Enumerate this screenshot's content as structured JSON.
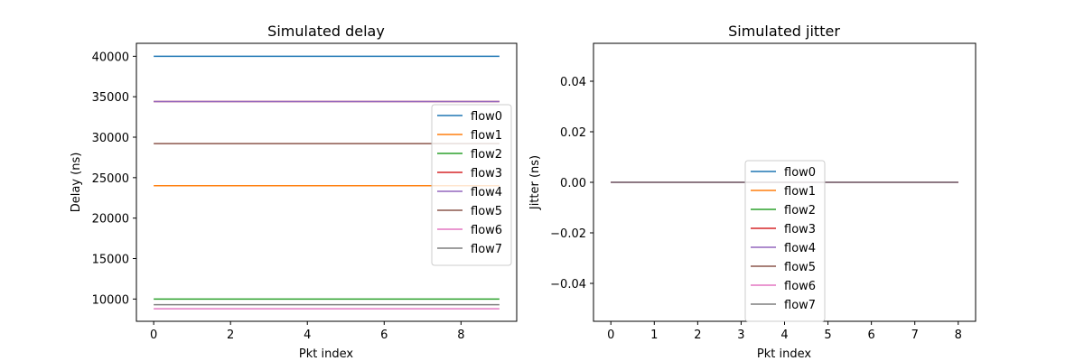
{
  "chart_data": [
    {
      "type": "line",
      "title": "Simulated delay",
      "xlabel": "Pkt index",
      "ylabel": "Delay (ns)",
      "xlim": [
        -0.45,
        9.45
      ],
      "ylim": [
        7250,
        41600
      ],
      "xticks": [
        0,
        2,
        4,
        6,
        8
      ],
      "yticks": [
        10000,
        15000,
        20000,
        25000,
        30000,
        35000,
        40000
      ],
      "x": [
        0,
        1,
        2,
        3,
        4,
        5,
        6,
        7,
        8,
        9
      ],
      "legend": "center-right",
      "grid": false,
      "series": [
        {
          "name": "flow0",
          "color": "#1f77b4",
          "values": [
            40000,
            40000,
            40000,
            40000,
            40000,
            40000,
            40000,
            40000,
            40000,
            40000
          ]
        },
        {
          "name": "flow1",
          "color": "#ff7f0e",
          "values": [
            24000,
            24000,
            24000,
            24000,
            24000,
            24000,
            24000,
            24000,
            24000,
            24000
          ]
        },
        {
          "name": "flow2",
          "color": "#2ca02c",
          "values": [
            10000,
            10000,
            10000,
            10000,
            10000,
            10000,
            10000,
            10000,
            10000,
            10000
          ]
        },
        {
          "name": "flow3",
          "color": "#d62728",
          "values": [
            34400,
            34400,
            34400,
            34400,
            34400,
            34400,
            34400,
            34400,
            34400,
            34400
          ]
        },
        {
          "name": "flow4",
          "color": "#9467bd",
          "values": [
            34400,
            34400,
            34400,
            34400,
            34400,
            34400,
            34400,
            34400,
            34400,
            34400
          ]
        },
        {
          "name": "flow5",
          "color": "#8c564b",
          "values": [
            29200,
            29200,
            29200,
            29200,
            29200,
            29200,
            29200,
            29200,
            29200,
            29200
          ]
        },
        {
          "name": "flow6",
          "color": "#e377c2",
          "values": [
            8800,
            8800,
            8800,
            8800,
            8800,
            8800,
            8800,
            8800,
            8800,
            8800
          ]
        },
        {
          "name": "flow7",
          "color": "#7f7f7f",
          "values": [
            9300,
            9300,
            9300,
            9300,
            9300,
            9300,
            9300,
            9300,
            9300,
            9300
          ]
        }
      ]
    },
    {
      "type": "line",
      "title": "Simulated jitter",
      "xlabel": "Pkt index",
      "ylabel": "Jitter (ns)",
      "xlim": [
        -0.4,
        8.4
      ],
      "ylim": [
        -0.055,
        0.055
      ],
      "xticks": [
        0,
        1,
        2,
        3,
        4,
        5,
        6,
        7,
        8
      ],
      "yticks": [
        -0.04,
        -0.02,
        0.0,
        0.02,
        0.04
      ],
      "ytick_labels": [
        "−0.04",
        "−0.02",
        "0.00",
        "0.02",
        "0.04"
      ],
      "x": [
        0,
        1,
        2,
        3,
        4,
        5,
        6,
        7,
        8
      ],
      "legend": "lower-center",
      "grid": false,
      "series": [
        {
          "name": "flow0",
          "color": "#1f77b4",
          "values": [
            0,
            0,
            0,
            0,
            0,
            0,
            0,
            0,
            0
          ]
        },
        {
          "name": "flow1",
          "color": "#ff7f0e",
          "values": [
            0,
            0,
            0,
            0,
            0,
            0,
            0,
            0,
            0
          ]
        },
        {
          "name": "flow2",
          "color": "#2ca02c",
          "values": [
            0,
            0,
            0,
            0,
            0,
            0,
            0,
            0,
            0
          ]
        },
        {
          "name": "flow3",
          "color": "#d62728",
          "values": [
            0,
            0,
            0,
            0,
            0,
            0,
            0,
            0,
            0
          ]
        },
        {
          "name": "flow4",
          "color": "#9467bd",
          "values": [
            0,
            0,
            0,
            0,
            0,
            0,
            0,
            0,
            0
          ]
        },
        {
          "name": "flow5",
          "color": "#8c564b",
          "values": [
            0,
            0,
            0,
            0,
            0,
            0,
            0,
            0,
            0
          ]
        },
        {
          "name": "flow6",
          "color": "#e377c2",
          "values": [
            0,
            0,
            0,
            0,
            0,
            0,
            0,
            0,
            0
          ]
        },
        {
          "name": "flow7",
          "color": "#7f7f7f",
          "values": [
            0,
            0,
            0,
            0,
            0,
            0,
            0,
            0,
            0
          ]
        }
      ]
    }
  ]
}
